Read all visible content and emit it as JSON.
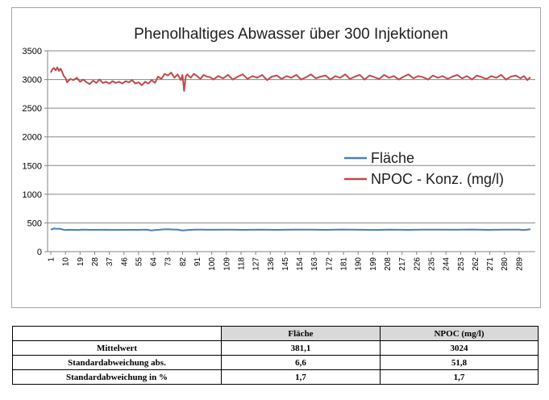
{
  "chart_data": {
    "type": "line",
    "title": "Phenolhaltiges  Abwasser über 300 Injektionen",
    "xlabel": "",
    "ylabel": "",
    "ylim": [
      0,
      3500
    ],
    "yticks": [
      0,
      500,
      1000,
      1500,
      2000,
      2500,
      3000,
      3500
    ],
    "x_range": [
      1,
      296
    ],
    "x_tick_labels": [
      "1",
      "10",
      "19",
      "28",
      "37",
      "46",
      "55",
      "64",
      "73",
      "82",
      "91",
      "100",
      "109",
      "118",
      "127",
      "136",
      "145",
      "154",
      "163",
      "172",
      "181",
      "190",
      "199",
      "208",
      "217",
      "226",
      "235",
      "244",
      "253",
      "262",
      "271",
      "280",
      "289"
    ],
    "grid": "horizontal",
    "legend_position": "center-right",
    "series": [
      {
        "name": "Fläche",
        "color": "#4a7ebb",
        "x": [
          1,
          2,
          3,
          4,
          5,
          6,
          7,
          8,
          9,
          10,
          12,
          14,
          16,
          18,
          20,
          25,
          30,
          35,
          40,
          45,
          50,
          55,
          60,
          63,
          65,
          68,
          70,
          73,
          76,
          79,
          80,
          82,
          85,
          88,
          90,
          95,
          100,
          110,
          120,
          130,
          140,
          150,
          160,
          170,
          180,
          190,
          200,
          210,
          220,
          230,
          240,
          250,
          260,
          270,
          280,
          289,
          292,
          296
        ],
        "values": [
          384,
          392,
          404,
          399,
          396,
          401,
          394,
          389,
          379,
          376,
          381,
          379,
          380,
          377,
          382,
          380,
          379,
          381,
          378,
          380,
          379,
          380,
          382,
          370,
          376,
          381,
          386,
          391,
          385,
          383,
          378,
          370,
          377,
          381,
          384,
          382,
          381,
          383,
          380,
          384,
          379,
          382,
          383,
          380,
          385,
          381,
          378,
          384,
          380,
          382,
          383,
          381,
          385,
          380,
          383,
          382,
          375,
          391
        ]
      },
      {
        "name": "NPOC - Konz. (mg/l)",
        "color": "#be4b48",
        "x": [
          1,
          2,
          3,
          4,
          5,
          6,
          7,
          8,
          9,
          10,
          11,
          12,
          13,
          15,
          17,
          19,
          21,
          23,
          25,
          27,
          29,
          31,
          33,
          35,
          37,
          39,
          41,
          43,
          45,
          47,
          49,
          51,
          53,
          55,
          57,
          59,
          61,
          63,
          65,
          67,
          69,
          71,
          73,
          75,
          77,
          79,
          80,
          81,
          82,
          83,
          84,
          85,
          87,
          89,
          91,
          93,
          95,
          97,
          99,
          101,
          104,
          107,
          110,
          113,
          116,
          119,
          122,
          125,
          128,
          131,
          134,
          137,
          140,
          143,
          146,
          149,
          152,
          155,
          158,
          161,
          164,
          167,
          170,
          173,
          176,
          179,
          182,
          185,
          188,
          191,
          194,
          197,
          200,
          203,
          206,
          209,
          212,
          215,
          218,
          221,
          224,
          227,
          230,
          233,
          236,
          239,
          242,
          245,
          248,
          251,
          254,
          257,
          260,
          263,
          266,
          269,
          272,
          275,
          278,
          281,
          284,
          287,
          290,
          292,
          294,
          296
        ],
        "values": [
          3120,
          3180,
          3200,
          3160,
          3210,
          3150,
          3190,
          3130,
          3060,
          3030,
          2950,
          2980,
          3010,
          2990,
          3030,
          2960,
          3000,
          2950,
          2920,
          2980,
          2940,
          3000,
          2940,
          2960,
          2930,
          2970,
          2940,
          2960,
          2930,
          2970,
          2950,
          2990,
          2930,
          2950,
          2900,
          2960,
          2930,
          2990,
          2940,
          3050,
          3010,
          3100,
          3070,
          3120,
          3030,
          3090,
          3040,
          2990,
          3080,
          2800,
          3050,
          3090,
          3030,
          3100,
          3060,
          3010,
          3080,
          3050,
          3040,
          3000,
          3060,
          3020,
          3080,
          3000,
          3050,
          3090,
          3010,
          3060,
          3030,
          3080,
          2990,
          3050,
          3070,
          3010,
          3060,
          3030,
          3080,
          3000,
          3040,
          3090,
          3020,
          3050,
          3070,
          3000,
          3060,
          3030,
          3090,
          3010,
          3050,
          3080,
          3000,
          3070,
          3040,
          3010,
          3080,
          3030,
          3060,
          3000,
          3050,
          3090,
          3020,
          3060,
          3040,
          3000,
          3070,
          3030,
          3060,
          3010,
          3050,
          3080,
          3020,
          3060,
          3000,
          3070,
          3040,
          3010,
          3060,
          3030,
          3080,
          3000,
          3050,
          3070,
          3020,
          3060,
          2990,
          3040
        ]
      }
    ]
  },
  "table": {
    "headers": [
      "",
      "Fläche",
      "NPOC (mg/l)"
    ],
    "rows": [
      {
        "label": "Mittelwert",
        "flaeche": "381,1",
        "npoc": "3024"
      },
      {
        "label": "Standardabweichung  abs.",
        "flaeche": "6,6",
        "npoc": "51,8"
      },
      {
        "label": "Standardabweichung  in %",
        "flaeche": "1,7",
        "npoc": "1,7"
      }
    ]
  }
}
